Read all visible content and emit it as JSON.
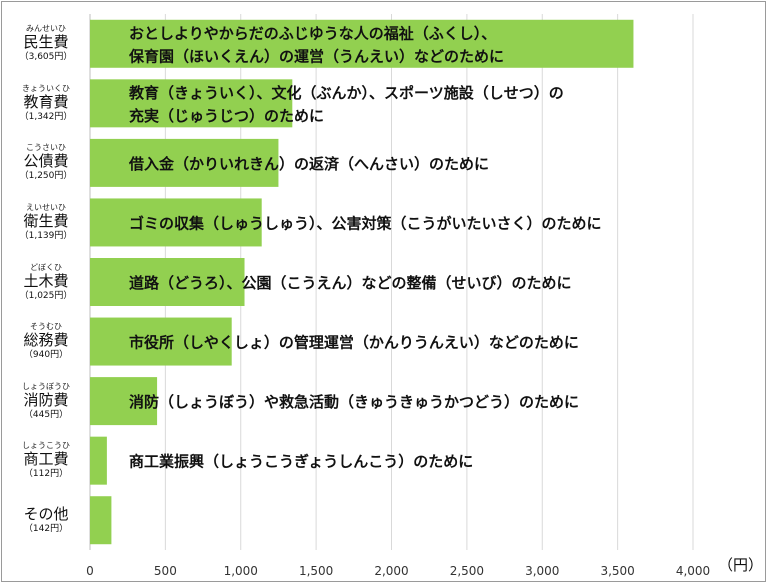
{
  "chart_data": {
    "type": "bar",
    "orientation": "horizontal",
    "unit_label": "（円）",
    "xlim": [
      0,
      4000
    ],
    "xticks": [
      0,
      500,
      1000,
      1500,
      2000,
      2500,
      3000,
      3500,
      4000
    ],
    "xtick_labels": [
      "0",
      "500",
      "1,000",
      "1,500",
      "2,000",
      "2,500",
      "3,000",
      "3,500",
      "4,000"
    ],
    "grid": "vertical",
    "bar_color": "#92d050",
    "categories": [
      {
        "name": "民生費",
        "ruby": "みんせいひ",
        "value": 3605,
        "value_label": "（3,605円）",
        "description": [
          "おとしよりやからだのふじゆうな人の福祉（ふくし）、",
          "保育園（ほいくえん）の運営（うんえい）などのために"
        ]
      },
      {
        "name": "教育費",
        "ruby": "きょういくひ",
        "value": 1342,
        "value_label": "（1,342円）",
        "description": [
          "教育（きょういく）、文化（ぶんか）、スポーツ施設（しせつ）の",
          "充実（じゅうじつ）のために"
        ]
      },
      {
        "name": "公債費",
        "ruby": "こうさいひ",
        "value": 1250,
        "value_label": "（1,250円）",
        "description": [
          "借入金（かりいれきん）の返済（へんさい）のために"
        ]
      },
      {
        "name": "衛生費",
        "ruby": "えいせいひ",
        "value": 1139,
        "value_label": "（1,139円）",
        "description": [
          "ゴミの収集（しゅうしゅう）、公害対策（こうがいたいさく）のために"
        ]
      },
      {
        "name": "土木費",
        "ruby": "どぼくひ",
        "value": 1025,
        "value_label": "（1,025円）",
        "description": [
          "道路（どうろ）、公園（こうえん）などの整備（せいび）のために"
        ]
      },
      {
        "name": "総務費",
        "ruby": "そうむひ",
        "value": 940,
        "value_label": "（940円）",
        "description": [
          "市役所（しやくしょ）の管理運営（かんりうんえい）などのために"
        ]
      },
      {
        "name": "消防費",
        "ruby": "しょうぼうひ",
        "value": 445,
        "value_label": "（445円）",
        "description": [
          "消防（しょうぼう）や救急活動（きゅうきゅうかつどう）のために"
        ]
      },
      {
        "name": "商工費",
        "ruby": "しょうこうひ",
        "value": 112,
        "value_label": "（112円）",
        "description": [
          "商工業振興（しょうこうぎょうしんこう）のために"
        ]
      },
      {
        "name": "その他",
        "ruby": "",
        "value": 142,
        "value_label": "（142円）",
        "description": []
      }
    ]
  }
}
